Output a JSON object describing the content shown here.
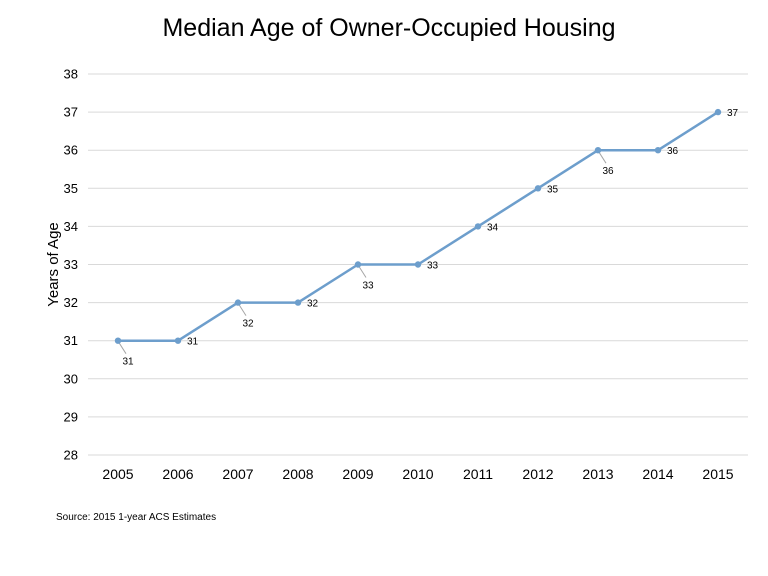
{
  "chart_data": {
    "type": "line",
    "title": "Median Age of Owner-Occupied Housing",
    "xlabel": "",
    "ylabel": "Years of Age",
    "categories": [
      "2005",
      "2006",
      "2007",
      "2008",
      "2009",
      "2010",
      "2011",
      "2012",
      "2013",
      "2014",
      "2015"
    ],
    "series": [
      {
        "values": [
          31,
          31,
          32,
          32,
          33,
          33,
          34,
          35,
          36,
          36,
          37
        ],
        "color": "#6d9ecc"
      }
    ],
    "data_labels": [
      "31",
      "31",
      "32",
      "32",
      "33",
      "33",
      "34",
      "35",
      "36",
      "36",
      "37"
    ],
    "ylim": [
      28,
      38
    ],
    "yticks": [
      "28",
      "29",
      "30",
      "31",
      "32",
      "33",
      "34",
      "35",
      "36",
      "37",
      "38"
    ],
    "grid": true,
    "gridline_color": "#d9d9d9",
    "legend": "none"
  },
  "source_note": "Source: 2015 1-year ACS Estimates"
}
